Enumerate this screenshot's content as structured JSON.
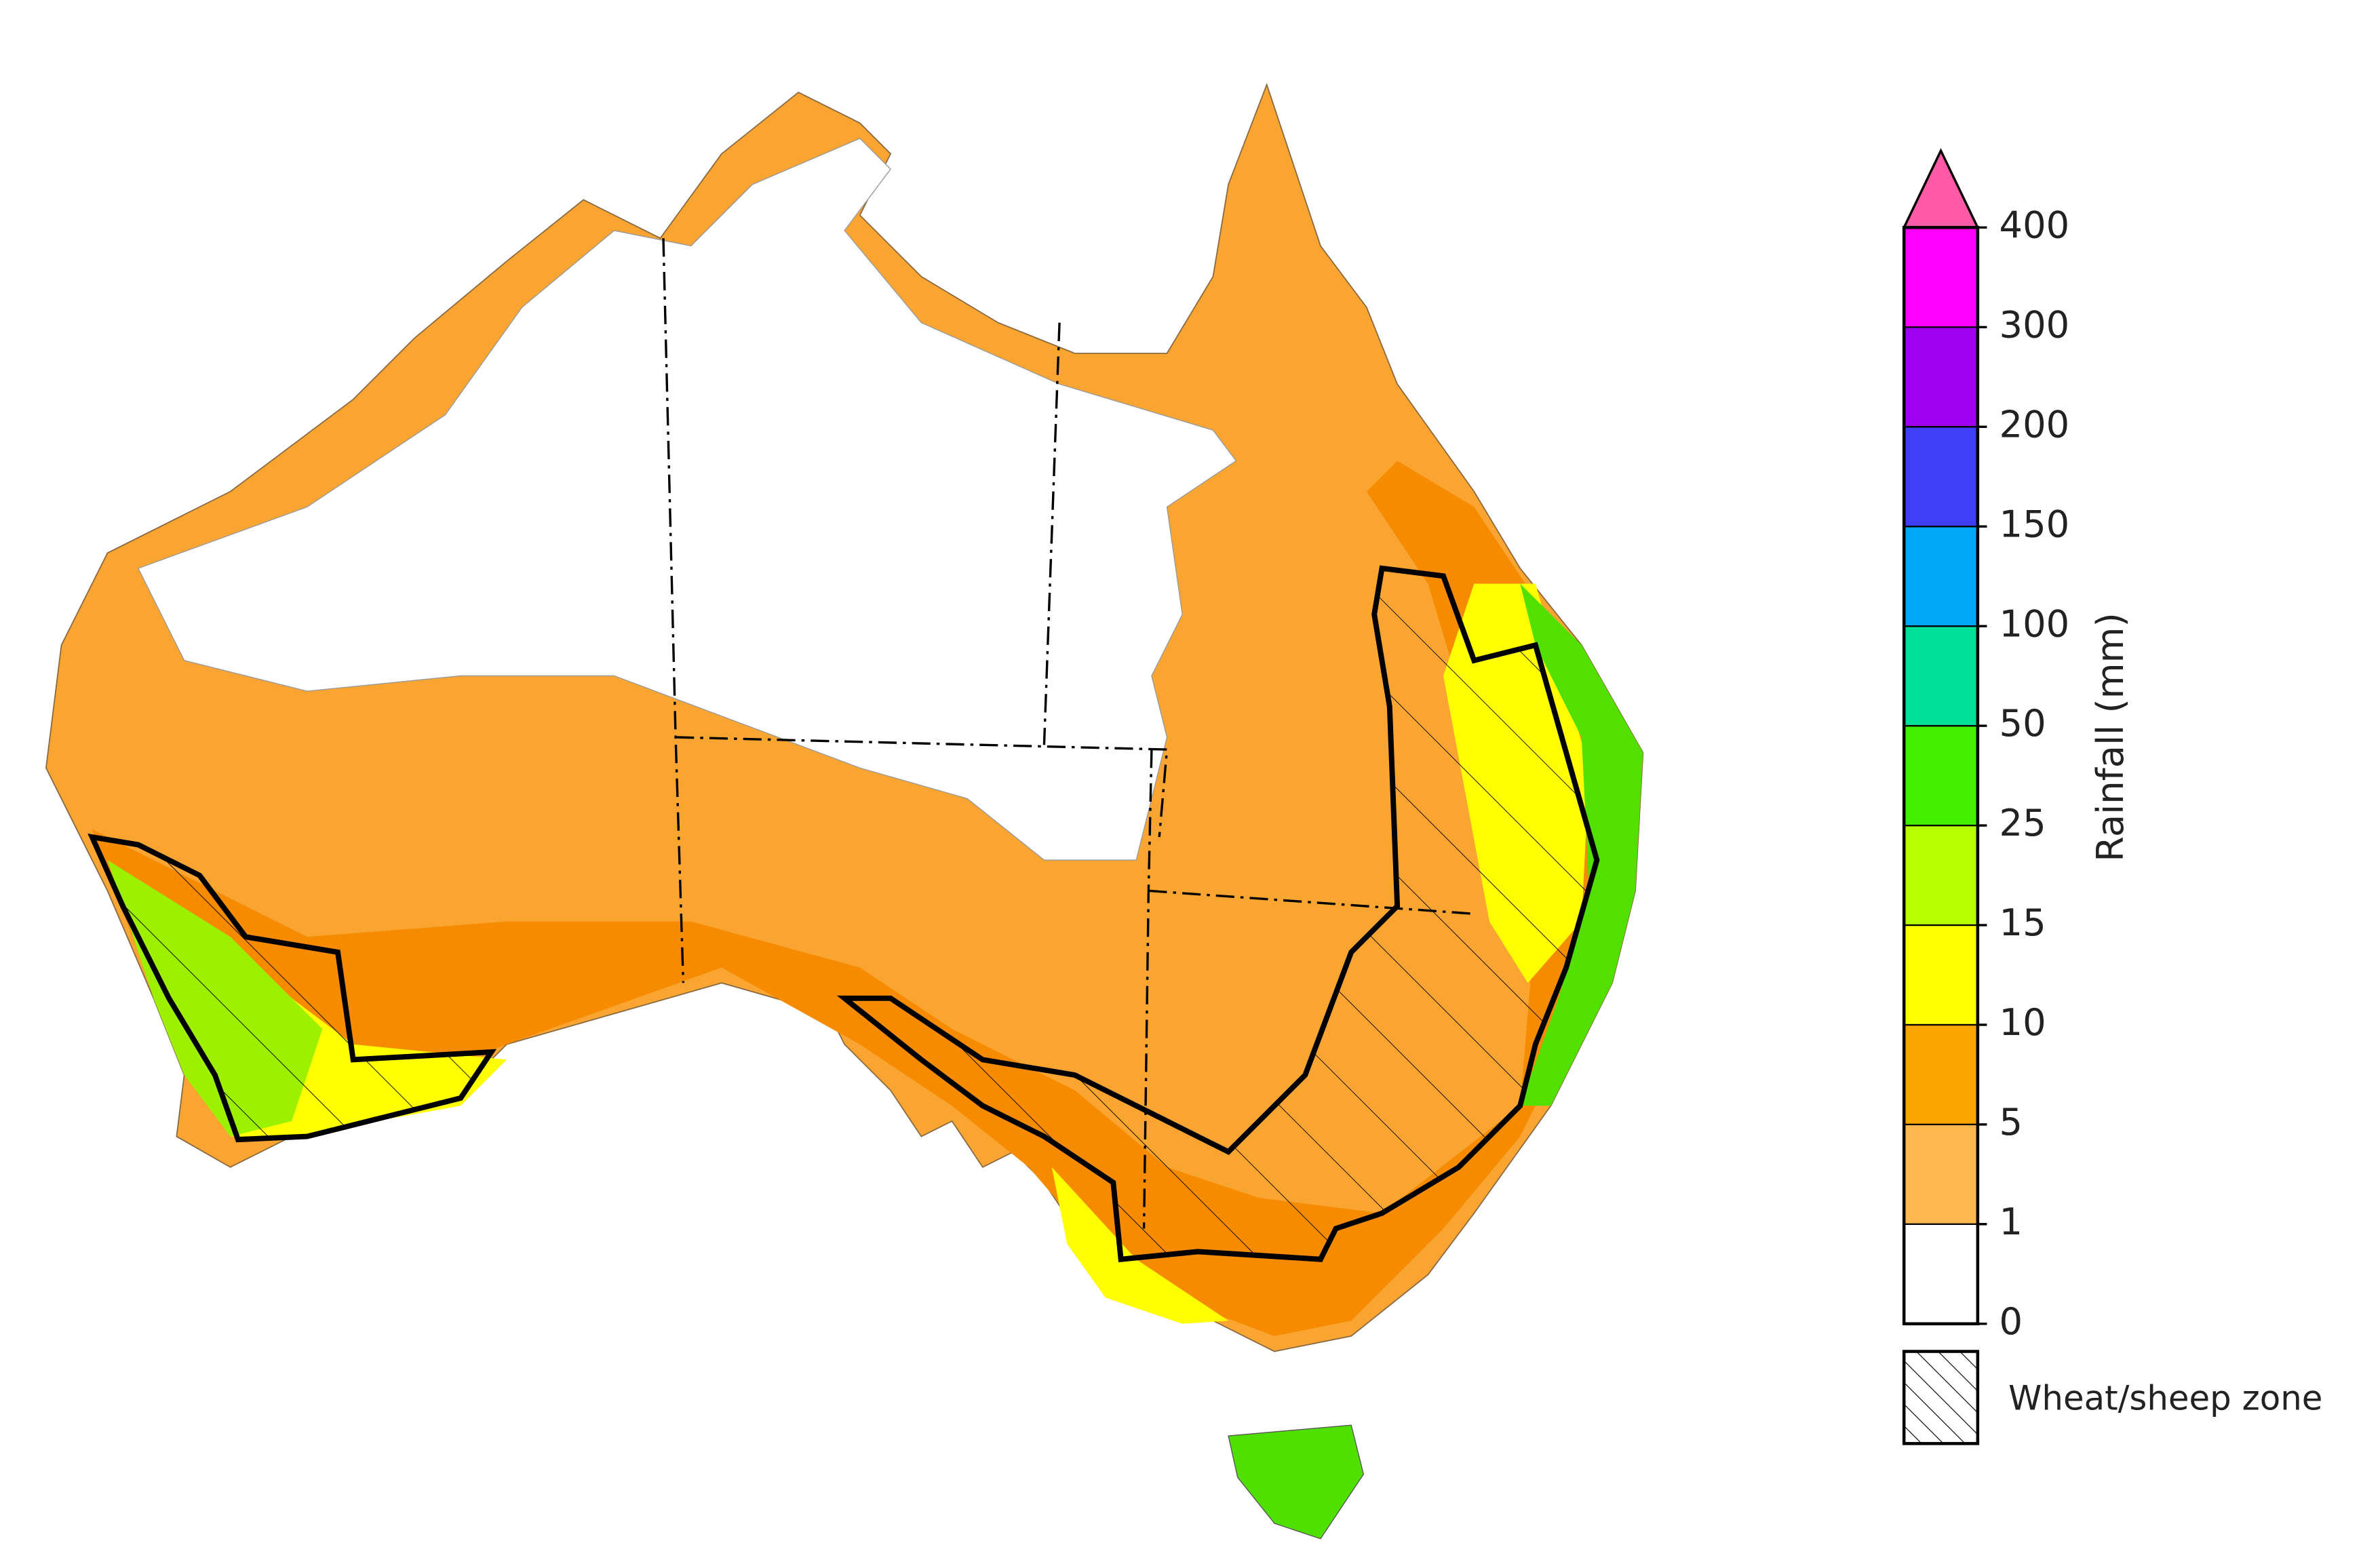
{
  "legend": {
    "title": "Rainfall (mm)",
    "ticks": [
      0,
      1,
      5,
      10,
      15,
      25,
      50,
      100,
      150,
      200,
      300,
      400
    ],
    "colors": [
      "#ffffff",
      "#fdb94e",
      "#f9a500",
      "#ffff00",
      "#b5ff00",
      "#44f000",
      "#00e096",
      "#00a8f5",
      "#3f3ff5",
      "#a000f0",
      "#ff00ff"
    ],
    "over_color": "#ff5aa5",
    "hatch_label": "Wheat/sheep zone"
  }
}
